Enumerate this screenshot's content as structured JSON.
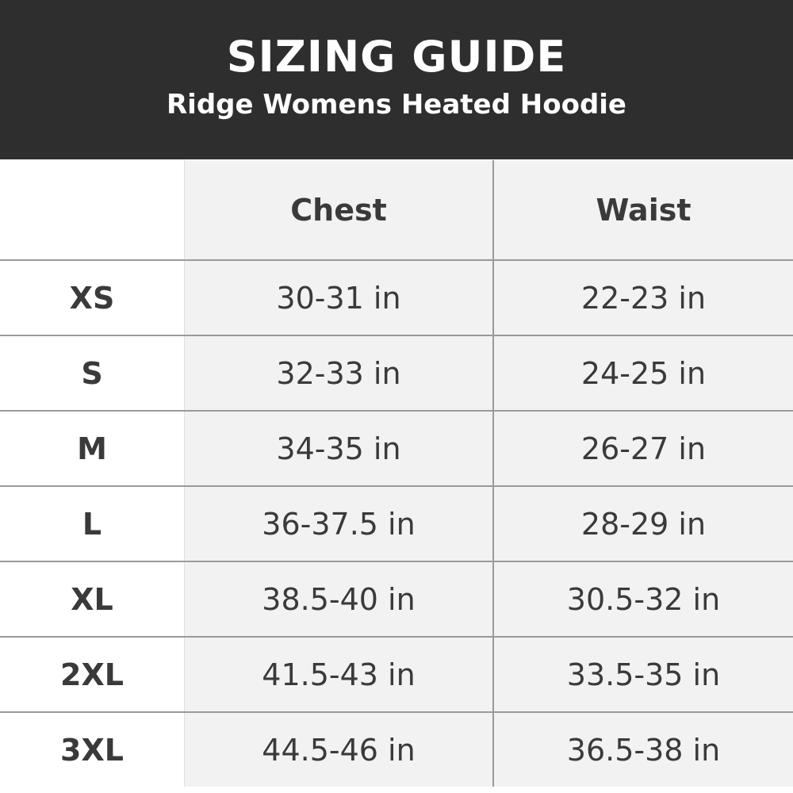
{
  "header": {
    "title": "SIZING GUIDE",
    "subtitle": "Ridge Womens Heated Hoodie"
  },
  "table": {
    "columns": [
      "",
      "Chest",
      "Waist"
    ],
    "rows": [
      {
        "size": "XS",
        "chest": "30-31 in",
        "waist": "22-23 in"
      },
      {
        "size": "S",
        "chest": "32-33 in",
        "waist": "24-25 in"
      },
      {
        "size": "M",
        "chest": "34-35 in",
        "waist": "26-27 in"
      },
      {
        "size": "L",
        "chest": "36-37.5 in",
        "waist": "28-29 in"
      },
      {
        "size": "XL",
        "chest": "38.5-40 in",
        "waist": "30.5-32 in"
      },
      {
        "size": "2XL",
        "chest": "41.5-43 in",
        "waist": "33.5-35 in"
      },
      {
        "size": "3XL",
        "chest": "44.5-46 in",
        "waist": "36.5-38 in"
      }
    ]
  },
  "colors": {
    "banner": "#2f2e2e",
    "cell": "#f2f2f2",
    "border": "#9a9a9a",
    "text": "#3a3a3a"
  }
}
